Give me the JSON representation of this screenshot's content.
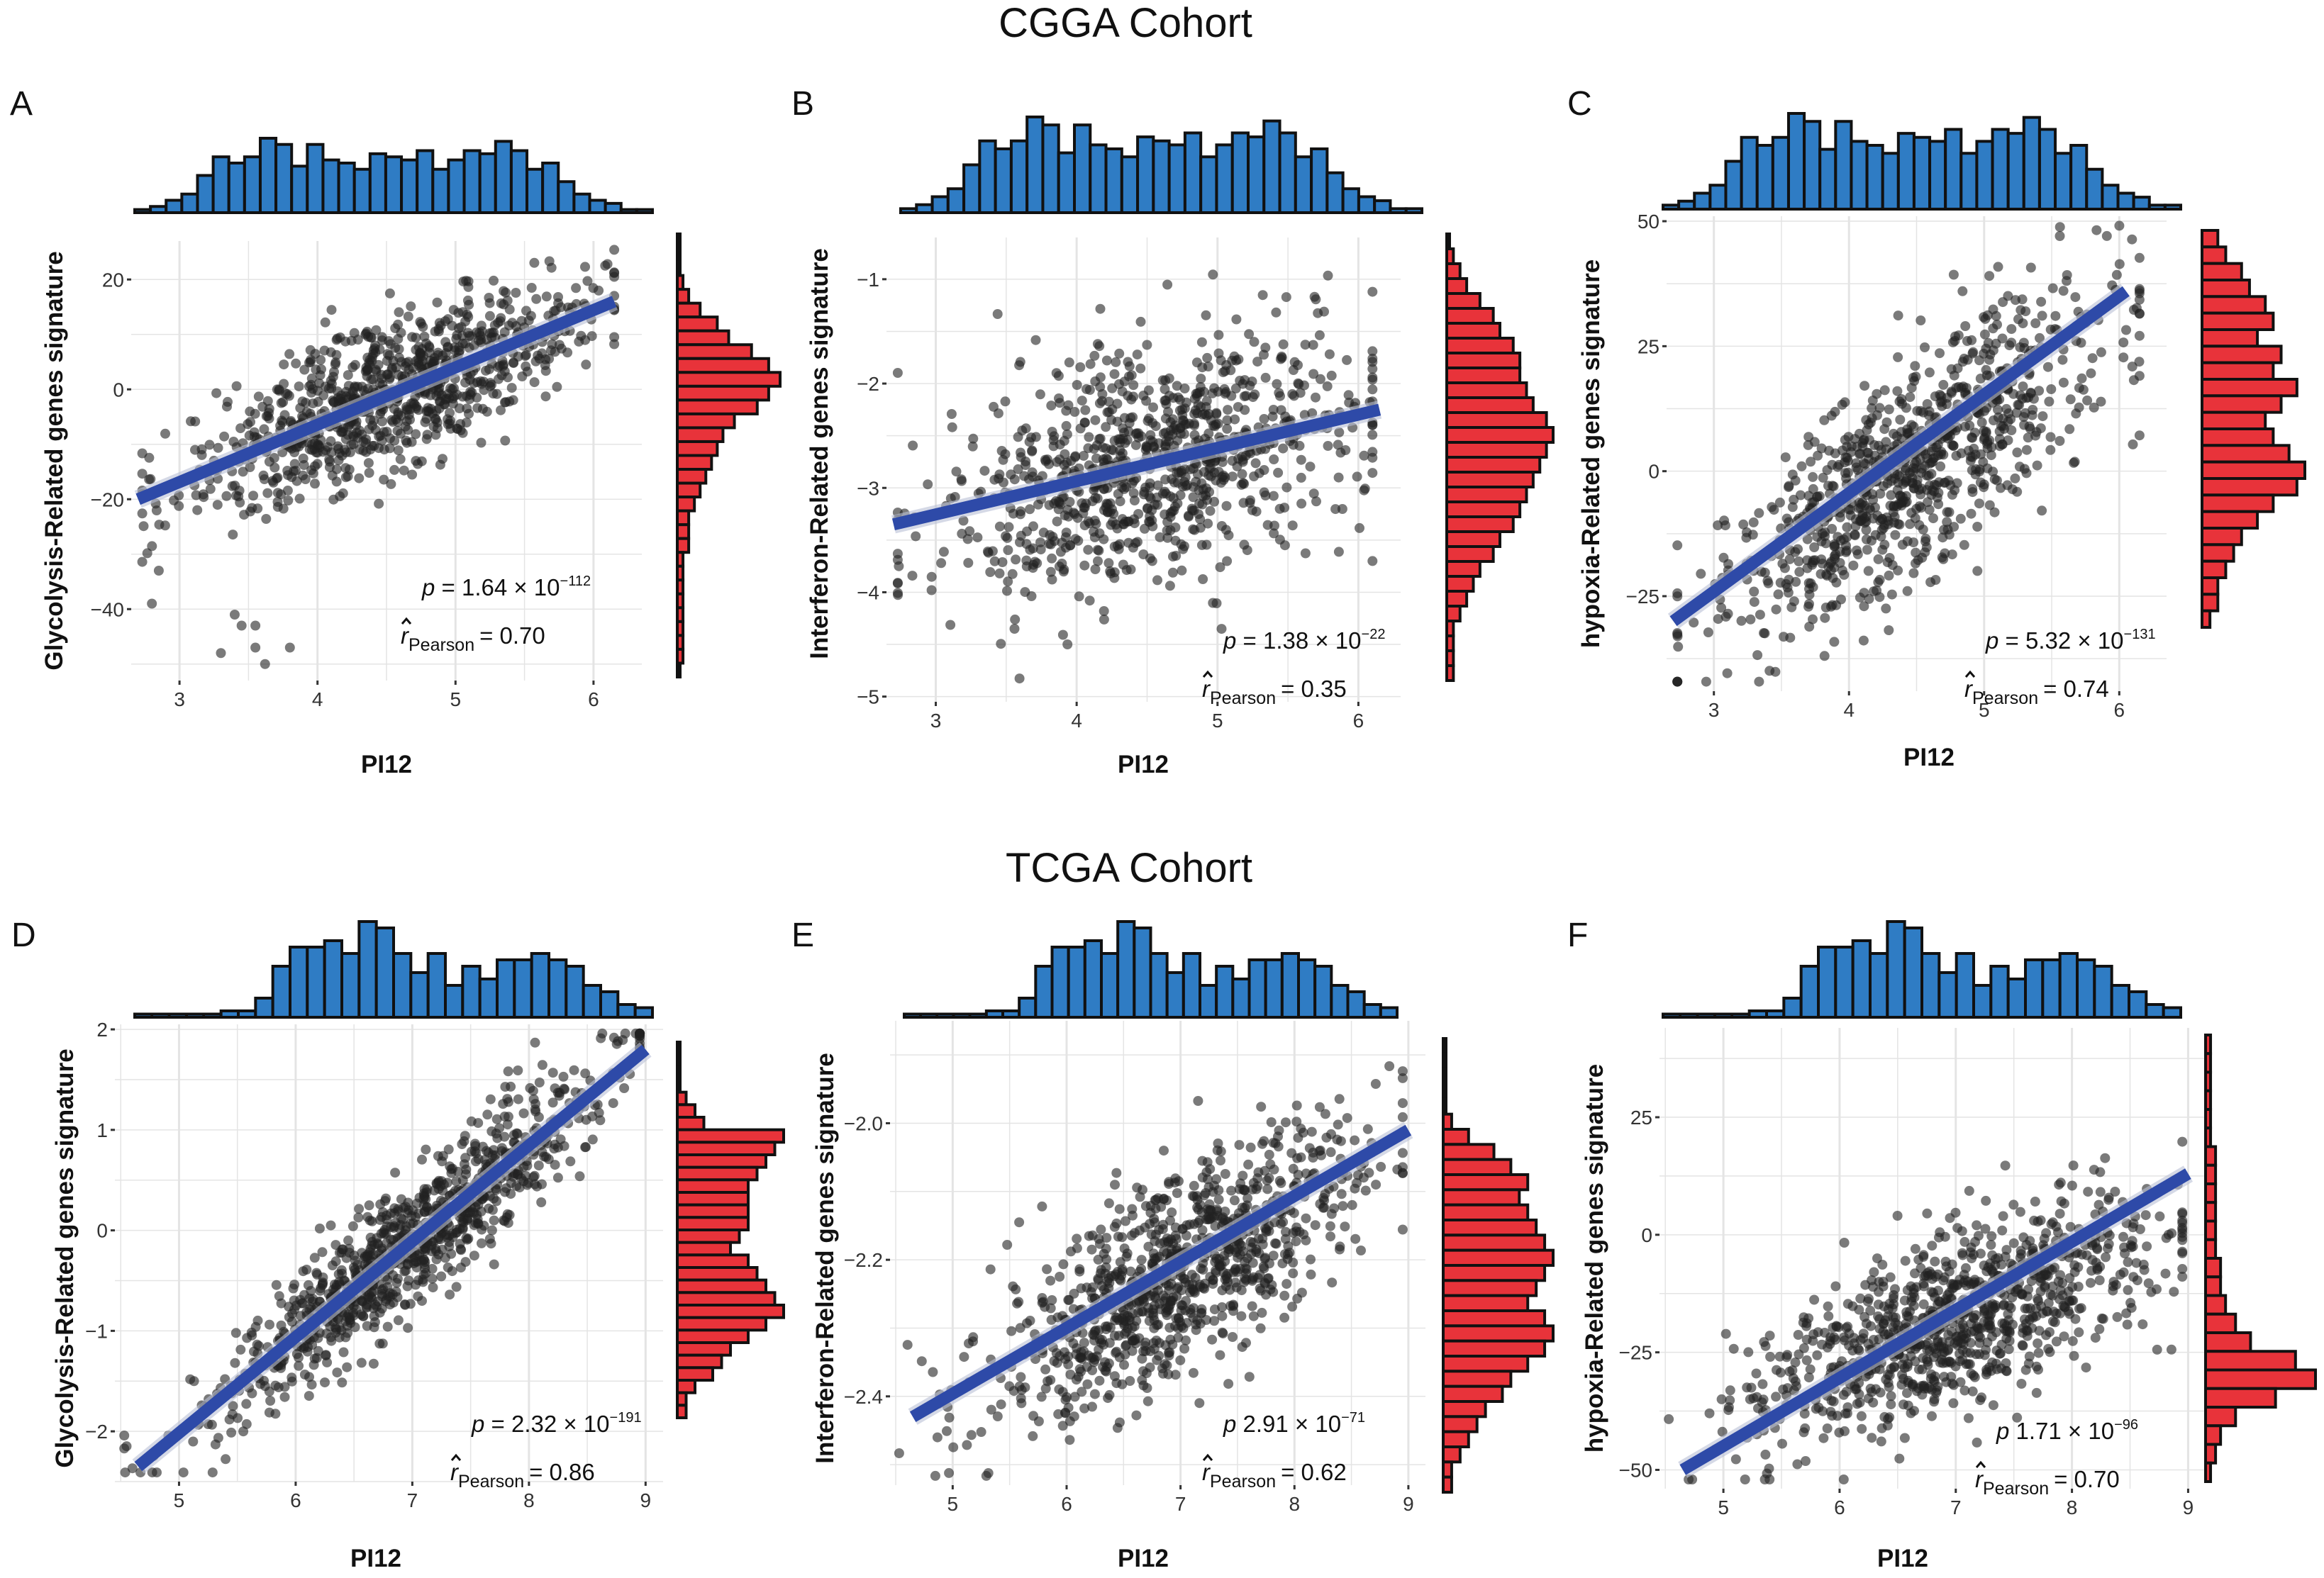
{
  "figure": {
    "cohort_titles": [
      "CGGA Cohort",
      "TCGA Cohort"
    ],
    "colors": {
      "top_hist": "#2f7cc4",
      "right_hist": "#e8333a",
      "fit_line": "#2e4aa8",
      "points": "#222222",
      "grid": "#e4e4e4"
    }
  },
  "chart_data": [
    {
      "type": "scatter",
      "panel": "A",
      "cohort": "CGGA Cohort",
      "xlabel": "PI12",
      "ylabel": "Glycolysis-Related genes signature",
      "xlim": [
        2.65,
        6.35
      ],
      "ylim": [
        -53,
        27
      ],
      "x_ticks": [
        3,
        4,
        5,
        6
      ],
      "y_ticks": [
        20,
        0,
        -20,
        -40
      ],
      "fit": {
        "x": [
          2.7,
          6.15
        ],
        "y": [
          -20,
          16
        ]
      },
      "cluster": {
        "n": 900,
        "x_mean": 4.5,
        "x_sd": 0.72,
        "slope": 10.4,
        "x_center": 4.45,
        "y_center": -1.5,
        "resid_sd": 6.5
      },
      "outliers": [
        [
          3.4,
          -41
        ],
        [
          3.55,
          -47
        ],
        [
          3.62,
          -50
        ],
        [
          3.8,
          -47
        ],
        [
          3.3,
          -48
        ],
        [
          2.8,
          -39
        ],
        [
          2.85,
          -33
        ],
        [
          3.45,
          -43
        ],
        [
          3.55,
          -43
        ]
      ],
      "top_hist": [
        1,
        2,
        4,
        6,
        12,
        18,
        16,
        18,
        24,
        22,
        15,
        22,
        17,
        16,
        14,
        19,
        18,
        17,
        20,
        14,
        17,
        20,
        19,
        23,
        20,
        14,
        16,
        10,
        6,
        4,
        3,
        1,
        1
      ],
      "right_hist": [
        0,
        0,
        0,
        1,
        2,
        4,
        7,
        9,
        13,
        16,
        18,
        16,
        14,
        10,
        8,
        7,
        6,
        5,
        4,
        3,
        2,
        2,
        2,
        1,
        1,
        1,
        1,
        1,
        1,
        1,
        1,
        0
      ],
      "stat": {
        "p_label": "p",
        "p_value": "= 1.64 × 10",
        "p_exp": "−112",
        "r_label": "r",
        "r_sub": "Pearson",
        "r_value": "= 0.70"
      }
    },
    {
      "type": "scatter",
      "panel": "B",
      "cohort": "CGGA Cohort",
      "xlabel": "PI12",
      "ylabel": "Interferon-Related genes signature",
      "xlim": [
        2.65,
        6.3
      ],
      "ylim": [
        -5.05,
        -0.6
      ],
      "x_ticks": [
        3,
        4,
        5,
        6
      ],
      "y_ticks": [
        -1,
        -2,
        -3,
        -4,
        -5
      ],
      "fit": {
        "x": [
          2.7,
          6.15
        ],
        "y": [
          -3.35,
          -2.25
        ]
      },
      "cluster": {
        "n": 900,
        "x_mean": 4.5,
        "x_sd": 0.72,
        "slope": 0.32,
        "x_center": 4.45,
        "y_center": -2.8,
        "resid_sd": 0.55
      },
      "outliers": [],
      "top_hist": [
        1,
        2,
        4,
        6,
        12,
        18,
        16,
        18,
        24,
        22,
        15,
        22,
        17,
        16,
        14,
        19,
        18,
        17,
        20,
        14,
        17,
        20,
        19,
        23,
        20,
        14,
        16,
        10,
        6,
        4,
        3,
        1,
        1
      ],
      "right_hist": [
        0,
        1,
        2,
        3,
        5,
        7,
        8,
        10,
        11,
        11,
        12,
        13,
        15,
        16,
        15,
        14,
        13,
        12,
        11,
        10,
        8,
        7,
        5,
        4,
        3,
        2,
        1,
        1,
        1,
        1
      ],
      "stat": {
        "p_label": "p",
        "p_value": "= 1.38 × 10",
        "p_exp": "−22",
        "r_label": "r",
        "r_sub": "Pearson",
        "r_value": "= 0.35"
      }
    },
    {
      "type": "scatter",
      "panel": "C",
      "cohort": "CGGA Cohort",
      "xlabel": "PI12",
      "ylabel": "hypoxia-Related genes signature",
      "xlim": [
        2.65,
        6.35
      ],
      "ylim": [
        -44,
        51
      ],
      "x_ticks": [
        3,
        4,
        5,
        6
      ],
      "y_ticks": [
        50,
        25,
        0,
        -25
      ],
      "fit": {
        "x": [
          2.7,
          6.05
        ],
        "y": [
          -30,
          36
        ]
      },
      "cluster": {
        "n": 900,
        "x_mean": 4.5,
        "x_sd": 0.72,
        "slope": 19.5,
        "x_center": 4.45,
        "y_center": 0,
        "resid_sd": 11
      },
      "outliers": [],
      "top_hist": [
        1,
        2,
        4,
        6,
        12,
        18,
        16,
        18,
        24,
        22,
        15,
        22,
        17,
        16,
        14,
        19,
        18,
        17,
        20,
        14,
        17,
        20,
        19,
        23,
        20,
        14,
        16,
        10,
        6,
        4,
        3,
        1,
        1
      ],
      "right_hist": [
        2,
        3,
        5,
        6,
        8,
        9,
        7,
        10,
        9,
        12,
        10,
        8,
        9,
        11,
        13,
        12,
        9,
        7,
        5,
        4,
        3,
        2,
        2,
        1
      ],
      "stat": {
        "p_label": "p",
        "p_value": "= 5.32 × 10",
        "p_exp": "−131",
        "r_label": "r",
        "r_sub": "Pearson",
        "r_value": "= 0.74"
      }
    },
    {
      "type": "scatter",
      "panel": "D",
      "cohort": "TCGA Cohort",
      "xlabel": "PI12",
      "ylabel": "Glycolysis-Related genes signature",
      "xlim": [
        4.45,
        9.15
      ],
      "ylim": [
        -2.5,
        2.05
      ],
      "x_ticks": [
        5,
        6,
        7,
        8,
        9
      ],
      "y_ticks": [
        2,
        1,
        0,
        -1,
        -2
      ],
      "fit": {
        "x": [
          4.65,
          9.0
        ],
        "y": [
          -2.35,
          1.8
        ]
      },
      "cluster": {
        "n": 950,
        "x_mean": 7.0,
        "x_sd": 0.85,
        "slope": 0.95,
        "x_center": 7.0,
        "y_center": -0.1,
        "resid_sd": 0.32
      },
      "outliers": [],
      "top_hist": [
        1,
        1,
        1,
        1,
        1,
        2,
        2,
        6,
        16,
        22,
        22,
        24,
        20,
        30,
        28,
        20,
        14,
        20,
        10,
        16,
        12,
        18,
        18,
        20,
        18,
        16,
        10,
        8,
        4,
        3
      ],
      "right_hist": [
        0,
        0,
        0,
        0,
        1,
        2,
        3,
        12,
        11,
        10,
        9,
        8,
        8,
        8,
        8,
        7,
        6,
        8,
        9,
        10,
        11,
        12,
        10,
        8,
        6,
        5,
        4,
        2,
        1,
        1
      ],
      "stat": {
        "p_label": "p",
        "p_value": "= 2.32 × 10",
        "p_exp": "−191",
        "r_label": "r",
        "r_sub": "Pearson",
        "r_value": "= 0.86"
      }
    },
    {
      "type": "scatter",
      "panel": "E",
      "cohort": "TCGA Cohort",
      "xlabel": "PI12",
      "ylabel": "Interferon-Related genes signature",
      "xlim": [
        4.45,
        9.15
      ],
      "ylim": [
        -2.53,
        -1.85
      ],
      "x_ticks": [
        5,
        6,
        7,
        8,
        9
      ],
      "y_ticks": [
        -2.0,
        -2.2,
        -2.4
      ],
      "y_tick_labels": [
        "-2.0",
        "-2.2",
        "-2.4"
      ],
      "fit": {
        "x": [
          4.65,
          9.0
        ],
        "y": [
          -2.43,
          -2.01
        ]
      },
      "cluster": {
        "n": 950,
        "x_mean": 7.0,
        "x_sd": 0.85,
        "slope": 0.095,
        "x_center": 7.0,
        "y_center": -2.22,
        "resid_sd": 0.07
      },
      "outliers": [],
      "top_hist": [
        1,
        1,
        1,
        1,
        1,
        2,
        2,
        6,
        16,
        22,
        22,
        24,
        20,
        30,
        28,
        20,
        14,
        20,
        10,
        16,
        12,
        18,
        18,
        20,
        18,
        16,
        10,
        8,
        4,
        3
      ],
      "right_hist": [
        0,
        0,
        0,
        0,
        0,
        1,
        3,
        6,
        8,
        10,
        9,
        10,
        11,
        12,
        13,
        12,
        11,
        10,
        12,
        13,
        12,
        10,
        8,
        7,
        5,
        4,
        3,
        2,
        1,
        1
      ],
      "stat": {
        "p_label": "p",
        "p_value": "2.91 × 10",
        "p_exp": "−71",
        "r_label": "r",
        "r_sub": "Pearson",
        "r_value": "= 0.62"
      }
    },
    {
      "type": "scatter",
      "panel": "F",
      "cohort": "TCGA Cohort",
      "xlabel": "PI12",
      "ylabel": "hypoxia-Related genes signature",
      "xlim": [
        4.45,
        9.15
      ],
      "ylim": [
        -54,
        44
      ],
      "x_ticks": [
        5,
        6,
        7,
        8,
        9
      ],
      "y_ticks": [
        25,
        0,
        -25,
        -50
      ],
      "fit": {
        "x": [
          4.65,
          9.0
        ],
        "y": [
          -50,
          13
        ]
      },
      "cluster": {
        "n": 950,
        "x_mean": 7.0,
        "x_sd": 0.85,
        "slope": 10,
        "x_center": 7.0,
        "y_center": -18,
        "resid_sd": 9
      },
      "outliers": [],
      "top_hist": [
        1,
        1,
        1,
        1,
        1,
        2,
        2,
        6,
        16,
        22,
        22,
        24,
        20,
        30,
        28,
        20,
        14,
        20,
        10,
        16,
        12,
        18,
        18,
        20,
        18,
        16,
        10,
        8,
        4,
        3
      ],
      "right_hist": [
        1,
        1,
        1,
        1,
        1,
        1,
        2,
        2,
        2,
        2,
        2,
        2,
        3,
        3,
        4,
        6,
        9,
        18,
        22,
        14,
        6,
        3,
        2,
        1
      ],
      "stat": {
        "p_label": "p",
        "p_value": "1.71 × 10",
        "p_exp": "−96",
        "r_label": "r",
        "r_sub": "Pearson",
        "r_value": "= 0.70"
      }
    }
  ]
}
